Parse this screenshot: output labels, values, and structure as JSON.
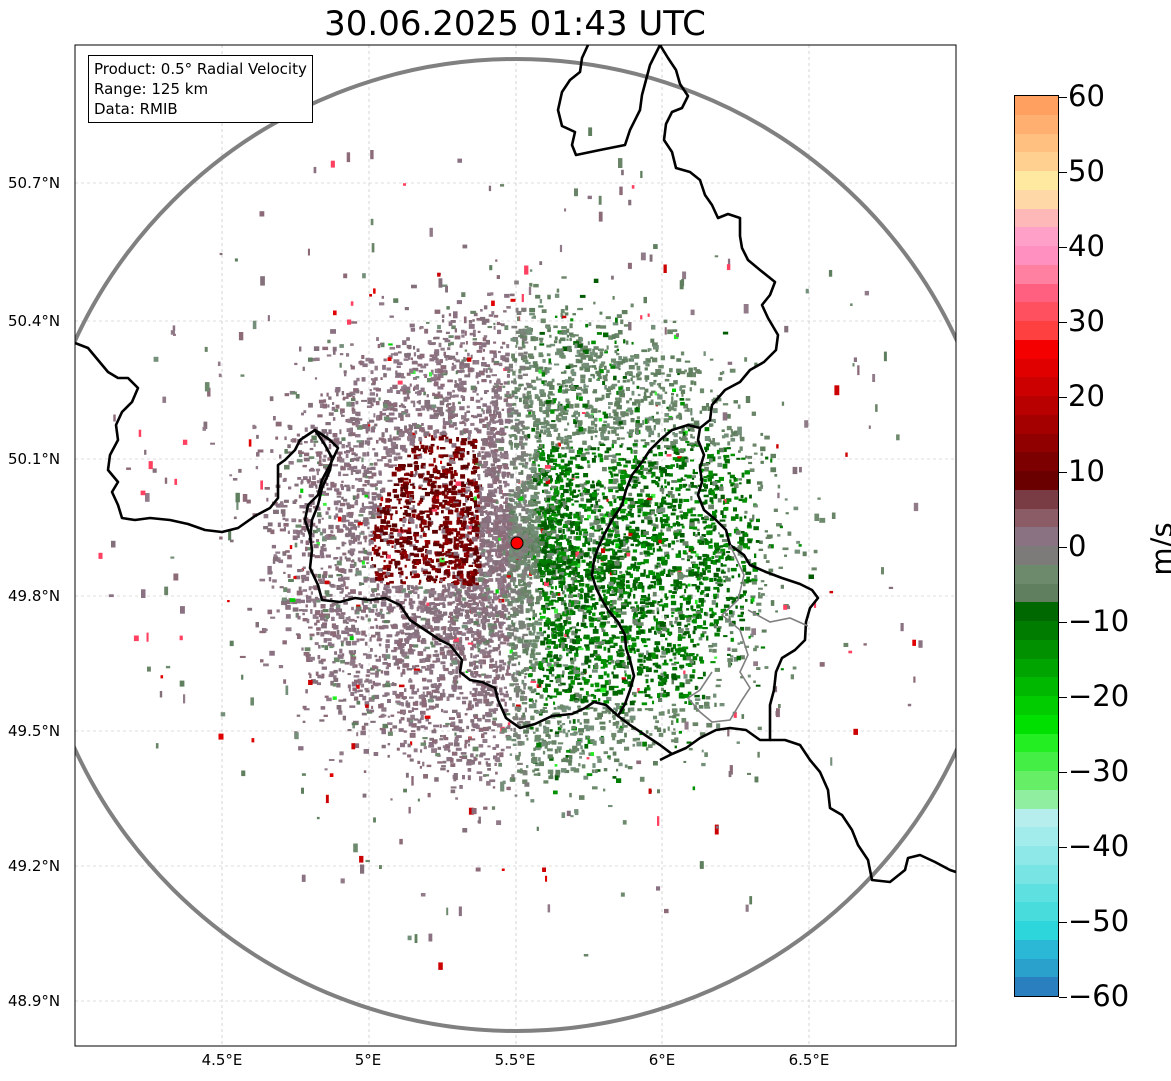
{
  "title": "30.06.2025 01:43 UTC",
  "info_box": {
    "product": "Product: 0.5° Radial Velocity",
    "range": "Range: 125 km",
    "data": "Data: RMIB"
  },
  "map": {
    "lat_ticks": [
      "50.7°N",
      "50.4°N",
      "50.1°N",
      "49.8°N",
      "49.5°N",
      "49.2°N",
      "48.9°N"
    ],
    "lon_ticks": [
      "4.5°E",
      "5°E",
      "5.5°E",
      "6°E",
      "6.5°E"
    ],
    "radar_site": {
      "lon": 5.505,
      "lat": 49.914
    },
    "range_ring_color": "#808080",
    "border_color": "#000000"
  },
  "colorbar": {
    "unit": "m/s",
    "min": -60,
    "max": 60,
    "tick_labels": [
      "60",
      "50",
      "40",
      "30",
      "20",
      "10",
      "0",
      "−10",
      "−20",
      "−30",
      "−40",
      "−50",
      "−60"
    ],
    "colors": [
      "#2a7fbf",
      "#2aa0cc",
      "#2ab8d6",
      "#2dd6da",
      "#48dcdc",
      "#5ee0e0",
      "#78e4e4",
      "#8ee8e8",
      "#a3ecec",
      "#b6eeee",
      "#90eea0",
      "#66ee66",
      "#44ee44",
      "#22ee22",
      "#00e000",
      "#00cc00",
      "#00b800",
      "#00a400",
      "#009000",
      "#007c00",
      "#006800",
      "#5f7f5f",
      "#6d8a6d",
      "#7d7a7a",
      "#8a7282",
      "#8c5c66",
      "#7a3c44",
      "#6b0000",
      "#7d0000",
      "#900000",
      "#a40000",
      "#b80000",
      "#cc0000",
      "#e00000",
      "#f50000",
      "#ff4040",
      "#ff5060",
      "#ff6080",
      "#ff80a0",
      "#ff90c0",
      "#ffa0c8",
      "#ffb8b8",
      "#ffd8a8",
      "#ffe8a0",
      "#ffd090",
      "#ffc080",
      "#ffb070",
      "#ffa060"
    ]
  }
}
